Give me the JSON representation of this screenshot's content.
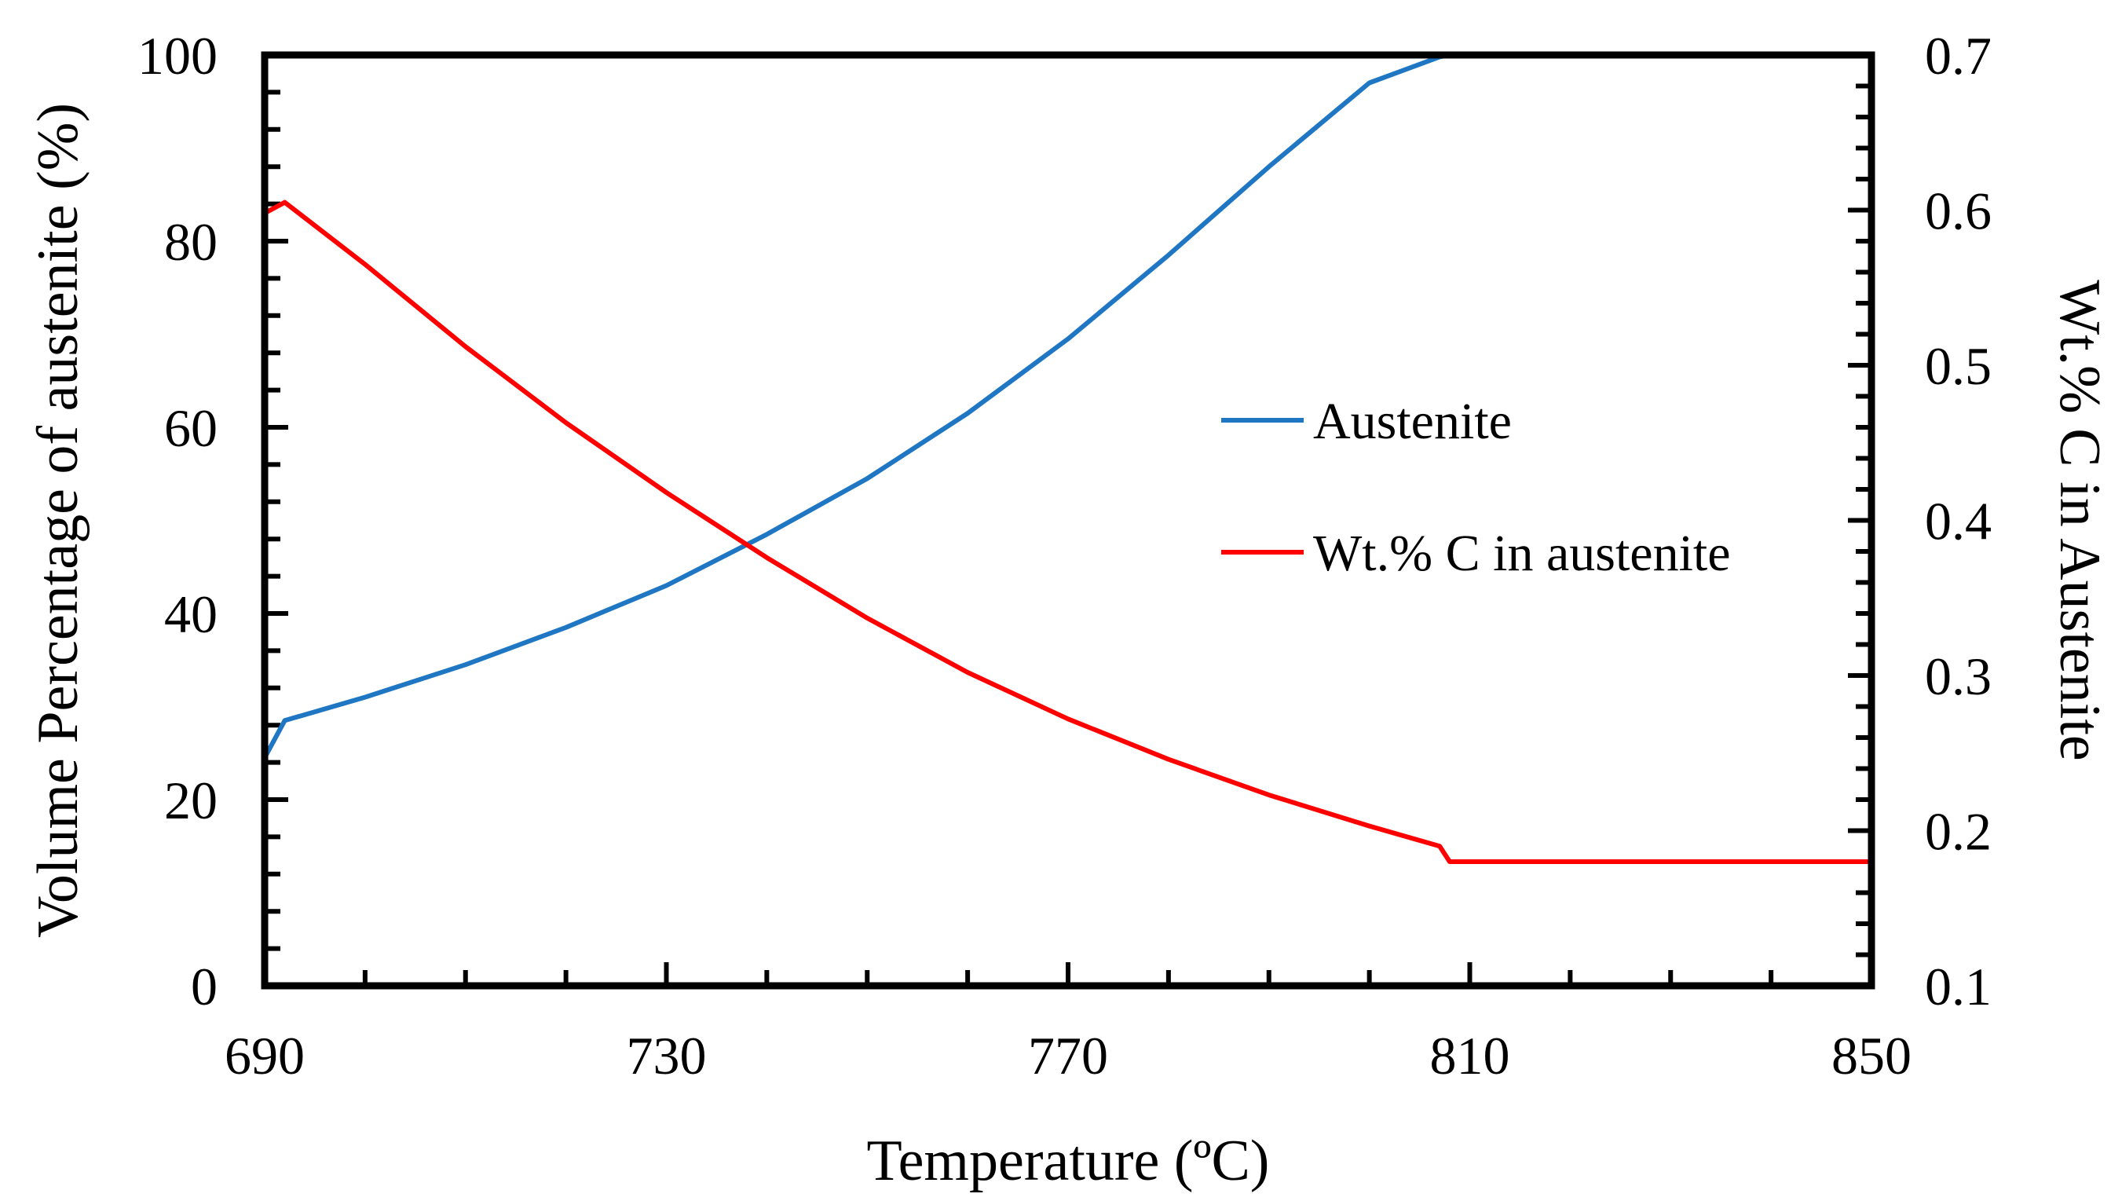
{
  "colors": {
    "austenite": "#1f77c4",
    "carbon": "#ff0000",
    "axis": "#000000",
    "background": "#ffffff"
  },
  "chart_data": {
    "type": "line",
    "title": "",
    "xlabel": "Temperature (ºC)",
    "ylabel": "Volume Percentage of austenite (%)",
    "y2label": "Wt.% C in Austenite",
    "xlim": [
      690,
      850
    ],
    "ylim": [
      0,
      100
    ],
    "y2lim": [
      0.1,
      0.7
    ],
    "x_ticks": [
      690,
      730,
      770,
      810,
      850
    ],
    "x_tick_labels": [
      "690",
      "730",
      "770",
      "810",
      "850"
    ],
    "y_ticks": [
      0,
      20,
      40,
      60,
      80,
      100
    ],
    "y_tick_labels": [
      "0",
      "20",
      "40",
      "60",
      "80",
      "100"
    ],
    "y2_ticks": [
      0.1,
      0.2,
      0.3,
      0.4,
      0.5,
      0.6,
      0.7
    ],
    "y2_tick_labels": [
      "0.1",
      "0.2",
      "0.3",
      "0.4",
      "0.5",
      "0.6",
      "0.7"
    ],
    "grid": false,
    "legend_position": "center-right",
    "series": [
      {
        "name": "Austenite",
        "axis": "left",
        "color": "#1f77c4",
        "x": [
          690,
          692,
          700,
          710,
          720,
          730,
          740,
          750,
          760,
          770,
          780,
          790,
          800,
          807,
          808,
          820,
          830,
          840,
          850
        ],
        "y": [
          24.5,
          28.5,
          31,
          34.5,
          38.5,
          43,
          48.5,
          54.5,
          61.5,
          69.5,
          78.5,
          88,
          97,
          99.8,
          100,
          100,
          100,
          100,
          100
        ]
      },
      {
        "name": "Wt.% C in austenite",
        "axis": "right",
        "color": "#ff0000",
        "x": [
          690,
          692,
          700,
          710,
          720,
          730,
          740,
          750,
          760,
          770,
          780,
          790,
          800,
          807,
          808,
          820,
          830,
          840,
          850
        ],
        "y": [
          0.598,
          0.605,
          0.565,
          0.512,
          0.463,
          0.418,
          0.376,
          0.337,
          0.302,
          0.272,
          0.246,
          0.223,
          0.203,
          0.19,
          0.18,
          0.18,
          0.18,
          0.18,
          0.18
        ]
      }
    ]
  }
}
